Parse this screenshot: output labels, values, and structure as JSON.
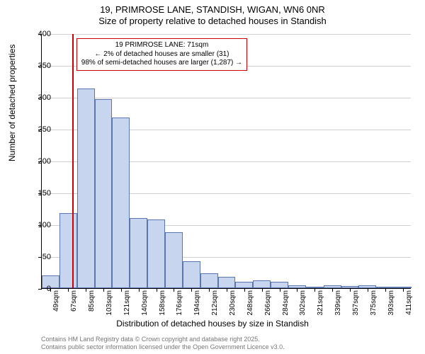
{
  "title_line1": "19, PRIMROSE LANE, STANDISH, WIGAN, WN6 0NR",
  "title_line2": "Size of property relative to detached houses in Standish",
  "y_axis_label": "Number of detached properties",
  "x_axis_label": "Distribution of detached houses by size in Standish",
  "y_ticks": [
    0,
    50,
    100,
    150,
    200,
    250,
    300,
    350,
    400
  ],
  "y_max": 400,
  "chart": {
    "type": "histogram",
    "bar_fill": "#c7d5ef",
    "bar_border": "#5a76b0",
    "grid_color": "#d0d0d0",
    "marker_color": "#cc0000",
    "marker_x_value": 71,
    "bin_start": 40,
    "bin_width": 18,
    "bars": [
      {
        "label": "49sqm",
        "value": 20
      },
      {
        "label": "67sqm",
        "value": 118
      },
      {
        "label": "85sqm",
        "value": 313
      },
      {
        "label": "103sqm",
        "value": 297
      },
      {
        "label": "121sqm",
        "value": 268
      },
      {
        "label": "140sqm",
        "value": 110
      },
      {
        "label": "158sqm",
        "value": 108
      },
      {
        "label": "176sqm",
        "value": 88
      },
      {
        "label": "194sqm",
        "value": 42
      },
      {
        "label": "212sqm",
        "value": 23
      },
      {
        "label": "230sqm",
        "value": 18
      },
      {
        "label": "248sqm",
        "value": 10
      },
      {
        "label": "266sqm",
        "value": 12
      },
      {
        "label": "284sqm",
        "value": 10
      },
      {
        "label": "302sqm",
        "value": 5
      },
      {
        "label": "321sqm",
        "value": 2
      },
      {
        "label": "339sqm",
        "value": 5
      },
      {
        "label": "357sqm",
        "value": 3
      },
      {
        "label": "375sqm",
        "value": 4
      },
      {
        "label": "393sqm",
        "value": 2
      },
      {
        "label": "411sqm",
        "value": 2
      }
    ]
  },
  "annotation": {
    "line1": "19 PRIMROSE LANE: 71sqm",
    "line2": "← 2% of detached houses are smaller (31)",
    "line3": "98% of semi-detached houses are larger (1,287) →"
  },
  "attribution_line1": "Contains HM Land Registry data © Crown copyright and database right 2025.",
  "attribution_line2": "Contains public sector information licensed under the Open Government Licence v3.0."
}
